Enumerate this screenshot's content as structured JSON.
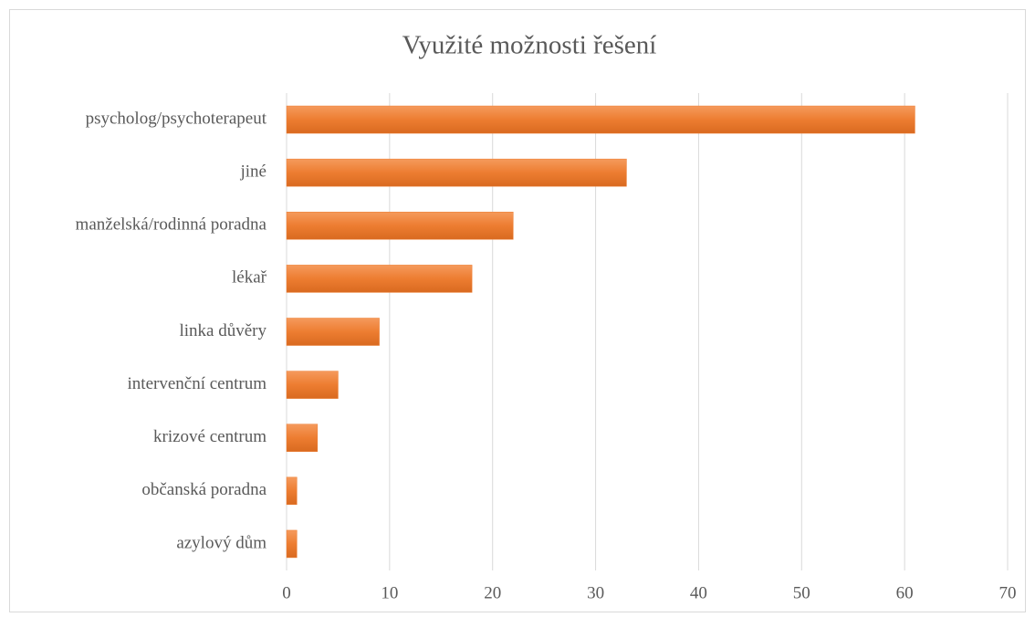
{
  "chart_data": {
    "type": "bar",
    "orientation": "horizontal",
    "title": "Využité možnosti řešení",
    "categories": [
      "psycholog/psychoterapeut",
      "jiné",
      "manželská/rodinná poradna",
      "lékař",
      "linka důvěry",
      "intervenční centrum",
      "krizové centrum",
      "občanská poradna",
      "azylový dům"
    ],
    "values": [
      61,
      33,
      22,
      18,
      9,
      5,
      3,
      1,
      1
    ],
    "color": "#ed7d31",
    "xlim": [
      0,
      70
    ],
    "xticks": [
      0,
      10,
      20,
      30,
      40,
      50,
      60,
      70
    ],
    "grid": true
  }
}
